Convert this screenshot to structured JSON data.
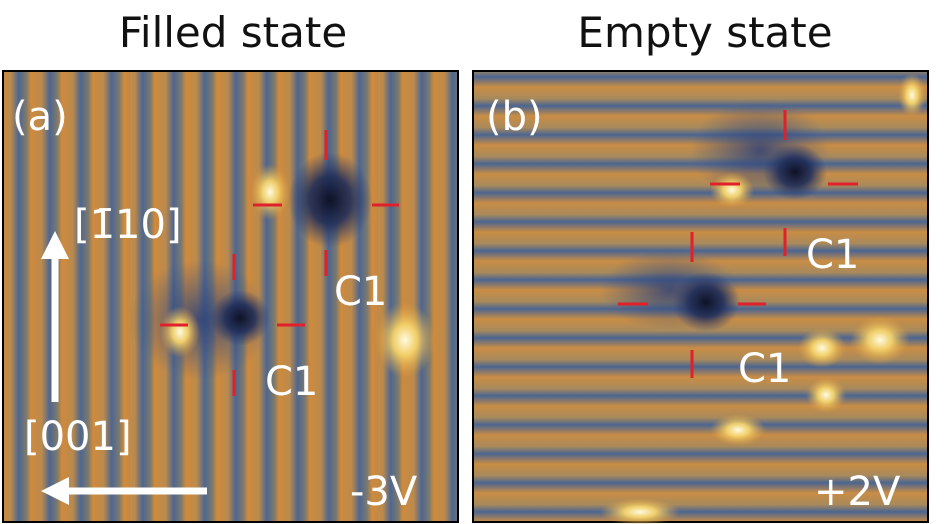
{
  "panels": [
    {
      "title": "Filled state",
      "label": "(a)",
      "direction_up": "[1̄10]",
      "direction_left": "[001]",
      "defects": [
        "C1",
        "C1"
      ],
      "bias": "-3V"
    },
    {
      "title": "Empty state",
      "label": "(b)",
      "defects": [
        "C1",
        "C1"
      ],
      "bias": "+2V"
    }
  ]
}
